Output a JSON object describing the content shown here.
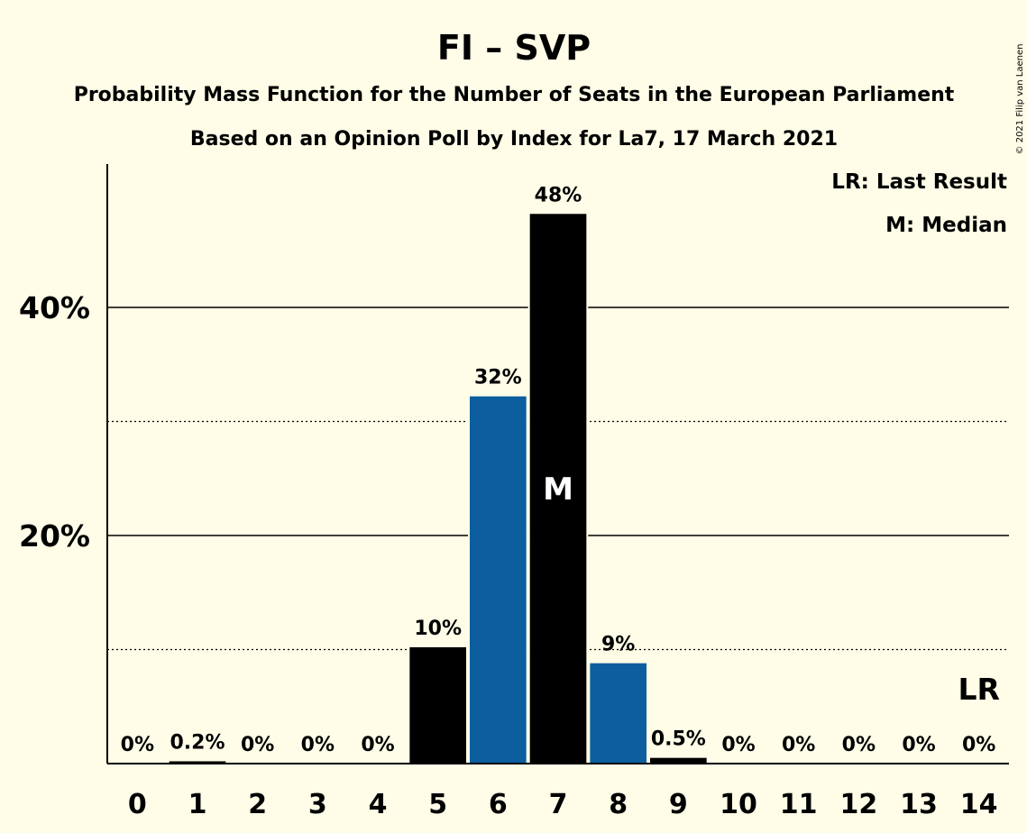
{
  "chart_data": {
    "type": "bar",
    "title": "FI – SVP",
    "subtitle1": "Probability Mass Function for the Number of Seats in the European Parliament",
    "subtitle2": "Based on an Opinion Poll by Index for La7, 17 March 2021",
    "copyright": "© 2021 Filip van Laenen",
    "legend_lr": "LR: Last Result",
    "legend_m": "M: Median",
    "median_marker": "M",
    "last_result_marker": "LR",
    "categories": [
      "0",
      "1",
      "2",
      "3",
      "4",
      "5",
      "6",
      "7",
      "8",
      "9",
      "10",
      "11",
      "12",
      "13",
      "14"
    ],
    "values": [
      0,
      0.2,
      0,
      0,
      0,
      10.2,
      32.2,
      48.2,
      8.8,
      0.5,
      0,
      0,
      0,
      0,
      0
    ],
    "value_labels": [
      "0%",
      "0.2%",
      "0%",
      "0%",
      "0%",
      "10%",
      "32%",
      "48%",
      "9%",
      "0.5%",
      "0%",
      "0%",
      "0%",
      "0%",
      "0%"
    ],
    "bar_colors": [
      "#000000",
      "#000000",
      "#0C5E9F",
      "#000000",
      "#0C5E9F",
      "#000000",
      "#0C5E9F",
      "#000000",
      "#0C5E9F",
      "#000000",
      "#000000",
      "#000000",
      "#000000",
      "#000000",
      "#000000"
    ],
    "median_index": 7,
    "last_result_index": 14,
    "yticks": [
      20,
      40
    ],
    "ytick_labels": [
      "20%",
      "40%"
    ],
    "dotted_lines": [
      10,
      30
    ],
    "ylim": [
      0,
      52.5
    ],
    "grid": true,
    "legend_position": "top-right",
    "colors": {
      "background": "#FFFDE7",
      "blue": "#0C5E9F",
      "black": "#000000"
    }
  }
}
